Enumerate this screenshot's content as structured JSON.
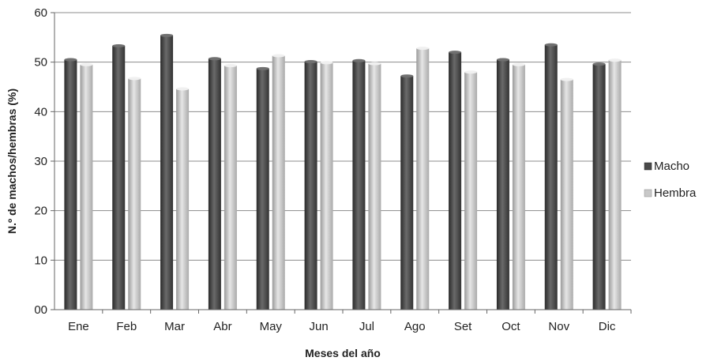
{
  "chart_data": {
    "type": "bar",
    "title": "",
    "xlabel": "Meses del año",
    "ylabel": "N.º de machos/hembras (%)",
    "ylim": [
      0,
      60
    ],
    "yticks": [
      "00",
      "10",
      "20",
      "30",
      "40",
      "50",
      "60"
    ],
    "yticks_values": [
      0,
      10,
      20,
      30,
      40,
      50,
      60
    ],
    "grid": true,
    "legend_position": "right",
    "categories": [
      "Ene",
      "Feb",
      "Mar",
      "Abr",
      "May",
      "Jun",
      "Jul",
      "Ago",
      "Set",
      "Oct",
      "Nov",
      "Dic"
    ],
    "series": [
      {
        "name": "Macho",
        "color": "#4a4a4a",
        "values": [
          50.5,
          53.3,
          55.4,
          50.7,
          48.7,
          50.1,
          50.3,
          47.2,
          52.0,
          50.5,
          53.5,
          49.6
        ]
      },
      {
        "name": "Hembra",
        "color": "#c8c8c8",
        "values": [
          49.5,
          46.7,
          44.6,
          49.3,
          51.3,
          49.9,
          49.7,
          52.8,
          48.0,
          49.5,
          46.5,
          50.4
        ]
      }
    ]
  }
}
